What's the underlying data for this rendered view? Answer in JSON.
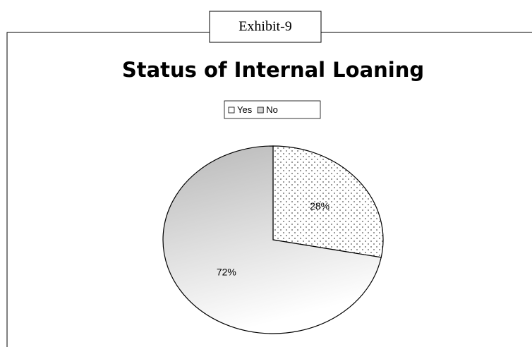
{
  "exhibit": "Exhibit-9",
  "chart_data": {
    "type": "pie",
    "title": "Status of Internal Loaning",
    "categories": [
      "Yes",
      "No"
    ],
    "values": [
      28,
      72
    ],
    "value_labels": [
      "28%",
      "72%"
    ],
    "colors": [
      "#ffffff",
      "#d4d4d4"
    ],
    "patterns": [
      "dotted",
      "gradient"
    ],
    "legend": "top"
  }
}
